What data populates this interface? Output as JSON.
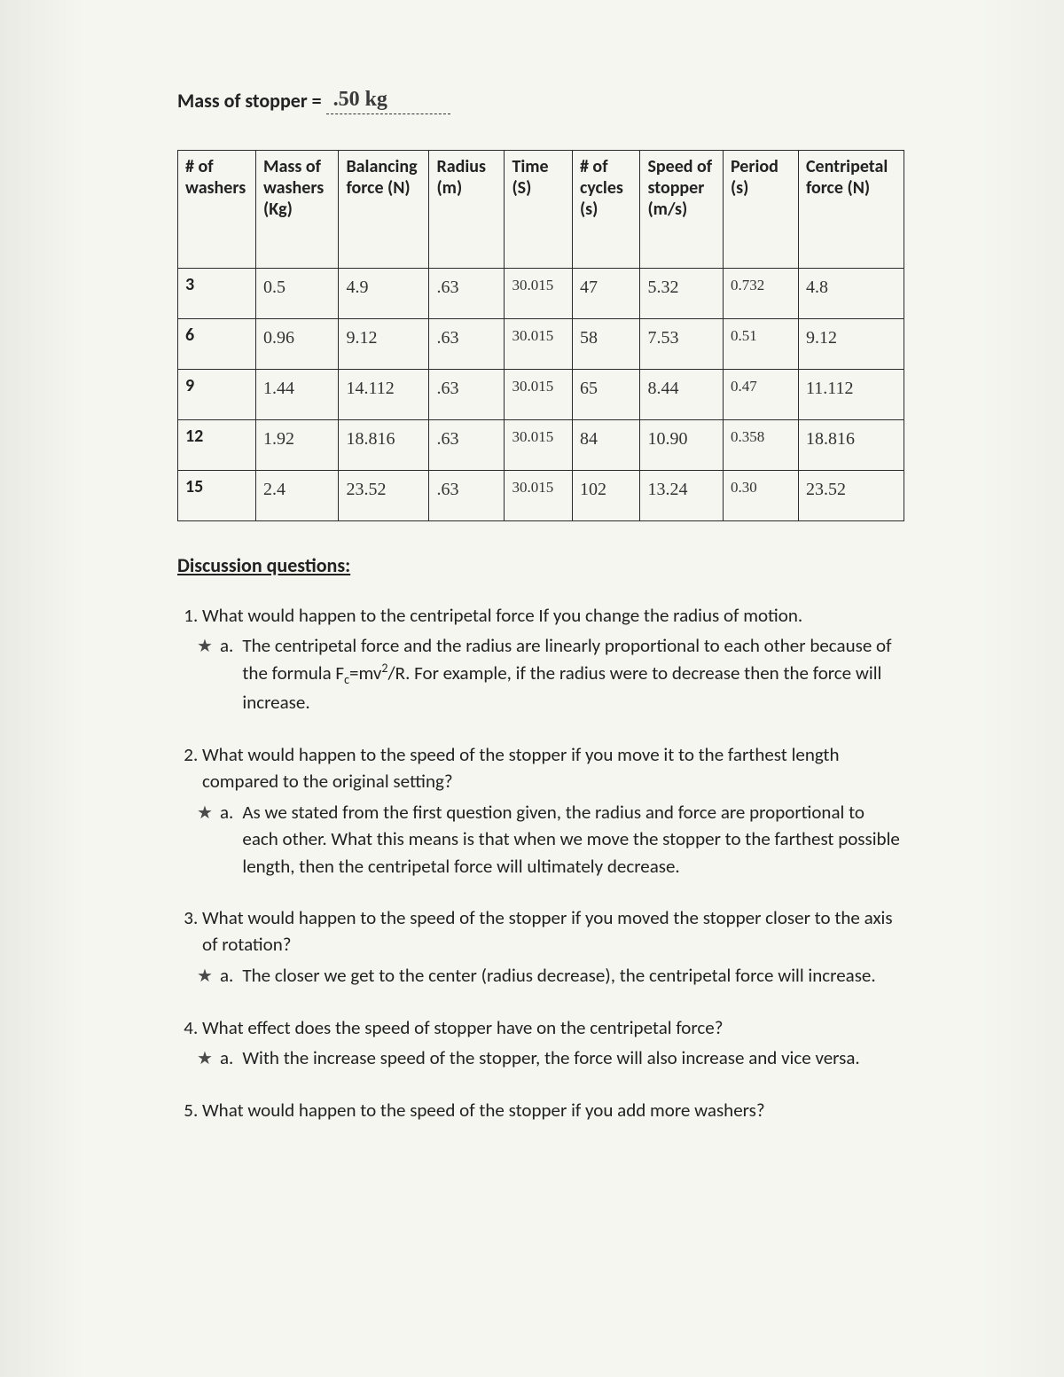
{
  "mass_line": {
    "label": "Mass of stopper = ",
    "value": ".50 kg"
  },
  "table": {
    "columns": [
      "# of washers",
      "Mass of washers (Kg)",
      "Balancing force (N)",
      "Radius (m)",
      "Time (S)",
      "# of cycles (s)",
      "Speed of stopper (m/s)",
      "Period (s)",
      "Centripetal force (N)"
    ],
    "rows": [
      {
        "label": "3",
        "cells": [
          "0.5",
          "4.9",
          ".63",
          "30.015",
          "47",
          "5.32",
          "0.732",
          "4.8"
        ]
      },
      {
        "label": "6",
        "cells": [
          "0.96",
          "9.12",
          ".63",
          "30.015",
          "58",
          "7.53",
          "0.51",
          "9.12"
        ]
      },
      {
        "label": "9",
        "cells": [
          "1.44",
          "14.112",
          ".63",
          "30.015",
          "65",
          "8.44",
          "0.47",
          "11.112"
        ]
      },
      {
        "label": "12",
        "cells": [
          "1.92",
          "18.816",
          ".63",
          "30.015",
          "84",
          "10.90",
          "0.358",
          "18.816"
        ]
      },
      {
        "label": "15",
        "cells": [
          "2.4",
          "23.52",
          ".63",
          "30.015",
          "102",
          "13.24",
          "0.30",
          "23.52"
        ]
      }
    ]
  },
  "discussion": {
    "title": "Discussion questions:",
    "items": [
      {
        "q": "What would happen to the centripetal force If you change the radius of motion.",
        "a": "The centripetal force and the radius are linearly proportional to each other because of the formula F_c=mv^2/R. For example, if the radius were to decrease then the force will increase.",
        "has_formula": true
      },
      {
        "q": "What would happen to the speed of the stopper if you move it to the farthest length compared to the original setting?",
        "a": "As we stated from the first question given, the radius and force are proportional to each other. What this means is that when we move the stopper to the farthest possible length, then the centripetal force will ultimately decrease.",
        "has_formula": false
      },
      {
        "q": "What would happen to the speed of the stopper if you moved the stopper closer to the axis of rotation?",
        "a": "The closer we get to the center (radius decrease), the centripetal force will increase.",
        "has_formula": false
      },
      {
        "q": "What effect does the speed of stopper have on the centripetal force?",
        "a": "With the increase speed of the stopper, the force will also increase and vice versa.",
        "has_formula": false
      },
      {
        "q": "What would happen to the speed of the stopper if you add more washers?",
        "a": null,
        "has_formula": false
      }
    ]
  },
  "star_glyph": "★",
  "sub_label": "a."
}
